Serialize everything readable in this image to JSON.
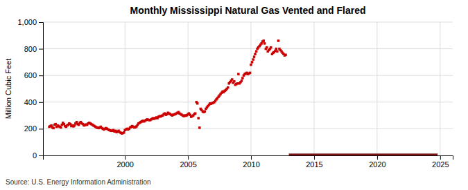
{
  "chart_data": {
    "type": "scatter",
    "title": "Monthly Mississippi Natural Gas Vented and Flared",
    "ylabel": "Million Cubic Feet",
    "annotations": [
      "Source: U.S. Energy Information Administration"
    ],
    "xlim": [
      1993.5,
      2026
    ],
    "ylim": [
      0,
      1000
    ],
    "xticks": [
      2000,
      2005,
      2010,
      2015,
      2020,
      2025
    ],
    "yticks": [
      0,
      200,
      400,
      600,
      800,
      {
        "value": 1000,
        "label": "1,000"
      }
    ],
    "grid": true,
    "series": [
      {
        "type": "scatter",
        "color": "#cc0000",
        "marker": "square",
        "x": [
          1994.0,
          1994.08,
          1994.17,
          1994.25,
          1994.33,
          1994.42,
          1994.5,
          1994.58,
          1994.67,
          1994.75,
          1994.83,
          1994.92,
          1995.0,
          1995.08,
          1995.17,
          1995.25,
          1995.33,
          1995.42,
          1995.5,
          1995.58,
          1995.67,
          1995.75,
          1995.83,
          1995.92,
          1996.0,
          1996.08,
          1996.17,
          1996.25,
          1996.33,
          1996.42,
          1996.5,
          1996.58,
          1996.67,
          1996.75,
          1996.83,
          1996.92,
          1997.0,
          1997.08,
          1997.17,
          1997.25,
          1997.33,
          1997.42,
          1997.5,
          1997.58,
          1997.67,
          1997.75,
          1997.83,
          1997.92,
          1998.0,
          1998.08,
          1998.17,
          1998.25,
          1998.33,
          1998.42,
          1998.5,
          1998.58,
          1998.67,
          1998.75,
          1998.83,
          1998.92,
          1999.0,
          1999.08,
          1999.17,
          1999.25,
          1999.33,
          1999.42,
          1999.5,
          1999.58,
          1999.67,
          1999.75,
          1999.83,
          1999.92,
          2000.0,
          2000.08,
          2000.17,
          2000.25,
          2000.33,
          2000.42,
          2000.5,
          2000.58,
          2000.67,
          2000.75,
          2000.83,
          2000.92,
          2001.0,
          2001.08,
          2001.17,
          2001.25,
          2001.33,
          2001.42,
          2001.5,
          2001.58,
          2001.67,
          2001.75,
          2001.83,
          2001.92,
          2002.0,
          2002.08,
          2002.17,
          2002.25,
          2002.33,
          2002.42,
          2002.5,
          2002.58,
          2002.67,
          2002.75,
          2002.83,
          2002.92,
          2003.0,
          2003.08,
          2003.17,
          2003.25,
          2003.33,
          2003.42,
          2003.5,
          2003.58,
          2003.67,
          2003.75,
          2003.83,
          2003.92,
          2004.0,
          2004.08,
          2004.17,
          2004.25,
          2004.33,
          2004.42,
          2004.5,
          2004.58,
          2004.67,
          2004.75,
          2004.83,
          2004.92,
          2005.0,
          2005.08,
          2005.17,
          2005.25,
          2005.33,
          2005.42,
          2005.5,
          2005.58,
          2005.67,
          2005.75,
          2005.83,
          2005.92,
          2006.0,
          2006.08,
          2006.17,
          2006.25,
          2006.33,
          2006.42,
          2006.5,
          2006.58,
          2006.67,
          2006.75,
          2006.83,
          2006.92,
          2007.0,
          2007.08,
          2007.17,
          2007.25,
          2007.33,
          2007.42,
          2007.5,
          2007.58,
          2007.67,
          2007.75,
          2007.83,
          2007.92,
          2008.0,
          2008.08,
          2008.17,
          2008.25,
          2008.33,
          2008.42,
          2008.5,
          2008.58,
          2008.67,
          2008.75,
          2008.83,
          2008.92,
          2009.0,
          2009.08,
          2009.17,
          2009.25,
          2009.33,
          2009.42,
          2009.5,
          2009.58,
          2009.67,
          2009.75,
          2009.83,
          2009.92,
          2010.0,
          2010.08,
          2010.17,
          2010.25,
          2010.33,
          2010.42,
          2010.5,
          2010.58,
          2010.67,
          2010.75,
          2010.83,
          2010.92,
          2011.0,
          2011.08,
          2011.17,
          2011.25,
          2011.33,
          2011.42,
          2011.5,
          2011.58,
          2011.67,
          2011.75,
          2011.83,
          2011.92,
          2012.0,
          2012.08,
          2012.17,
          2012.25,
          2012.33,
          2012.42,
          2012.5,
          2012.58,
          2012.67,
          2012.75
        ],
        "values": [
          215,
          220,
          225,
          210,
          205,
          230,
          235,
          215,
          225,
          220,
          215,
          210,
          230,
          245,
          235,
          220,
          215,
          225,
          230,
          240,
          235,
          220,
          225,
          218,
          225,
          240,
          250,
          235,
          230,
          245,
          250,
          240,
          235,
          225,
          228,
          232,
          230,
          240,
          245,
          240,
          235,
          230,
          225,
          220,
          215,
          210,
          208,
          205,
          210,
          215,
          205,
          200,
          195,
          200,
          205,
          200,
          195,
          190,
          188,
          185,
          185,
          190,
          180,
          185,
          175,
          180,
          185,
          175,
          170,
          165,
          168,
          172,
          190,
          195,
          200,
          195,
          200,
          210,
          215,
          220,
          215,
          210,
          212,
          218,
          230,
          240,
          245,
          250,
          255,
          260,
          255,
          260,
          265,
          270,
          268,
          265,
          265,
          270,
          275,
          280,
          275,
          280,
          285,
          280,
          290,
          295,
          292,
          298,
          300,
          310,
          315,
          305,
          310,
          320,
          315,
          310,
          305,
          300,
          305,
          308,
          310,
          315,
          320,
          325,
          315,
          310,
          305,
          300,
          295,
          300,
          298,
          302,
          310,
          315,
          305,
          290,
          295,
          300,
          310,
          315,
          400,
          390,
          280,
          208,
          350,
          340,
          330,
          325,
          330,
          350,
          360,
          370,
          380,
          390,
          388,
          392,
          395,
          400,
          410,
          420,
          430,
          440,
          450,
          460,
          470,
          480,
          475,
          485,
          490,
          500,
          510,
          540,
          550,
          560,
          570,
          545,
          555,
          530,
          535,
          540,
          610,
          540,
          550,
          560,
          580,
          600,
          610,
          615,
          620,
          610,
          615,
          620,
          680,
          700,
          720,
          740,
          760,
          780,
          800,
          810,
          820,
          830,
          840,
          855,
          860,
          840,
          800,
          810,
          780,
          790,
          800,
          810,
          760,
          770,
          775,
          785,
          800,
          780,
          860,
          800,
          790,
          780,
          770,
          760,
          750,
          755
        ]
      },
      {
        "type": "line",
        "color": "#7a1515",
        "x": [
          2013.0,
          2024.8
        ],
        "values": [
          3,
          3
        ]
      }
    ]
  }
}
